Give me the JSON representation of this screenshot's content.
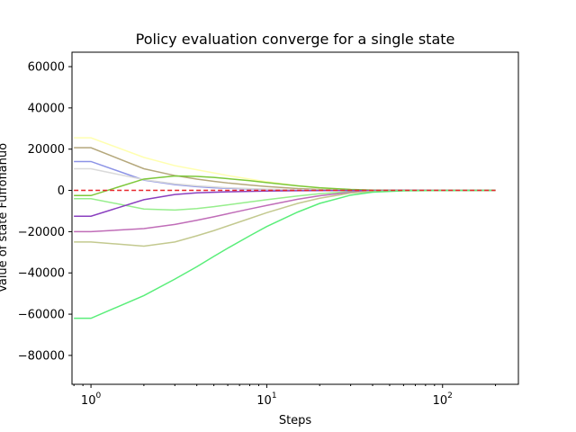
{
  "chart_data": {
    "type": "line",
    "title": "Policy evaluation converge for a single state",
    "xlabel": "Steps",
    "ylabel": "Value of state Fuffofianuo",
    "xscale": "log",
    "xlim": [
      0.78,
      270
    ],
    "ylim": [
      -94000,
      67000
    ],
    "xticks": [
      {
        "value": 1,
        "base": "10",
        "exp": "0"
      },
      {
        "value": 10,
        "base": "10",
        "exp": "1"
      },
      {
        "value": 100,
        "base": "10",
        "exp": "2"
      }
    ],
    "yticks": [
      -80000,
      -60000,
      -40000,
      -20000,
      0,
      20000,
      40000,
      60000
    ],
    "grid": false,
    "reference_line": {
      "y": 0,
      "color": "#e8262a",
      "style": "dashed"
    },
    "x": [
      0.8,
      1,
      2,
      3,
      4,
      5,
      6,
      8,
      10,
      15,
      20,
      30,
      40,
      60,
      100,
      200
    ],
    "series": [
      {
        "color": "#ffffb0",
        "values": [
          25500,
          25500,
          16000,
          12000,
          10000,
          8500,
          7200,
          5500,
          4200,
          2200,
          1200,
          400,
          150,
          30,
          0,
          0
        ]
      },
      {
        "color": "#b5a87c",
        "values": [
          20700,
          20700,
          10500,
          7200,
          5500,
          4400,
          3600,
          2600,
          1900,
          900,
          450,
          150,
          50,
          10,
          0,
          0
        ]
      },
      {
        "color": "#8c93e6",
        "values": [
          14000,
          14000,
          5000,
          2800,
          1800,
          1300,
          1000,
          700,
          500,
          250,
          120,
          40,
          10,
          0,
          0,
          0
        ]
      },
      {
        "color": "#dadada",
        "values": [
          10500,
          10500,
          5200,
          3200,
          2200,
          1700,
          1300,
          900,
          650,
          300,
          150,
          50,
          15,
          0,
          0,
          0
        ]
      },
      {
        "color": "#7dc83a",
        "values": [
          -2500,
          -2500,
          5500,
          7000,
          6800,
          6300,
          5700,
          4700,
          3800,
          2200,
          1300,
          450,
          150,
          30,
          0,
          0
        ]
      },
      {
        "color": "#96ee8c",
        "values": [
          -4000,
          -4000,
          -9000,
          -9500,
          -8800,
          -7900,
          -7000,
          -5600,
          -4500,
          -2700,
          -1600,
          -600,
          -200,
          -40,
          0,
          0
        ]
      },
      {
        "color": "#8a3fbf",
        "values": [
          -12500,
          -12500,
          -4500,
          -2000,
          -1200,
          -900,
          -700,
          -450,
          -300,
          -150,
          -70,
          -20,
          -5,
          0,
          0,
          0
        ]
      },
      {
        "color": "#c06db8",
        "values": [
          -20000,
          -20000,
          -18500,
          -16500,
          -14500,
          -12800,
          -11300,
          -9000,
          -7300,
          -4300,
          -2600,
          -900,
          -300,
          -60,
          0,
          0
        ]
      },
      {
        "color": "#c3c98f",
        "values": [
          -25000,
          -25000,
          -27000,
          -25000,
          -22000,
          -19500,
          -17200,
          -13600,
          -10800,
          -6300,
          -3800,
          -1300,
          -450,
          -90,
          0,
          0
        ]
      },
      {
        "color": "#5aee7a",
        "values": [
          -62000,
          -62000,
          -51000,
          -43000,
          -37000,
          -32000,
          -28000,
          -22000,
          -17500,
          -10500,
          -6300,
          -2300,
          -850,
          -180,
          -5,
          0
        ]
      }
    ]
  }
}
